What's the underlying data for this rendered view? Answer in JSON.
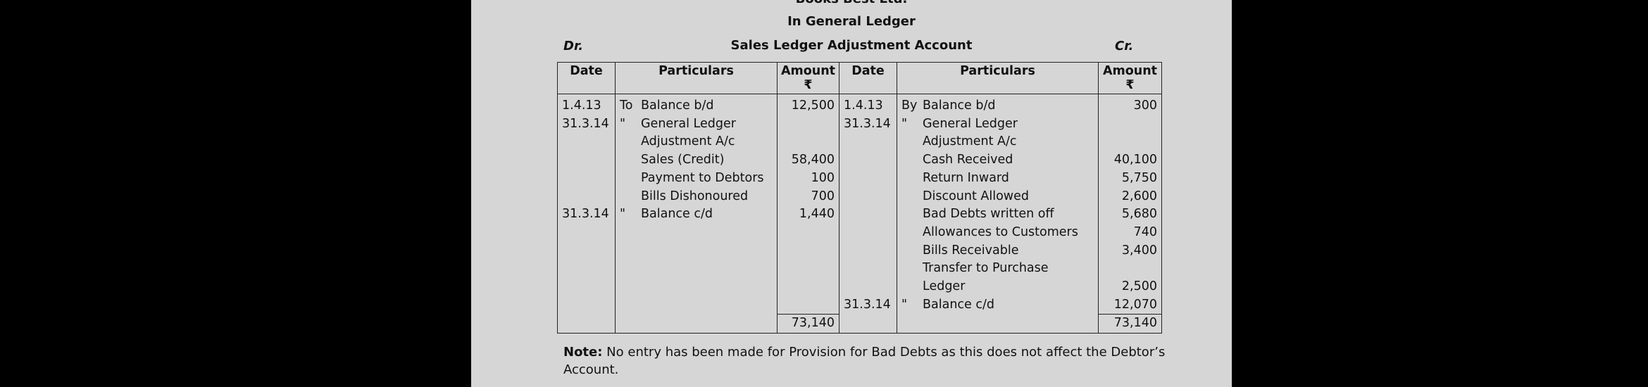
{
  "company": "Books Best Ltd.",
  "subtitle": "In General Ledger",
  "account_title": "Sales Ledger Adjustment Account",
  "dr_label": "Dr.",
  "cr_label": "Cr.",
  "headers": {
    "date": "Date",
    "particulars": "Particulars",
    "amount": "Amount",
    "currency": "₹"
  },
  "rows": [
    {
      "d_date": "1.4.13",
      "d_prefix": "To",
      "d_part": "Balance b/d",
      "d_amt": "12,500",
      "c_date": "1.4.13",
      "c_prefix": "By",
      "c_part": "Balance b/d",
      "c_amt": "300"
    },
    {
      "d_date": "31.3.14",
      "d_prefix": "\"",
      "d_part": "General Ledger",
      "d_amt": "",
      "c_date": "31.3.14",
      "c_prefix": "\"",
      "c_part": "General Ledger",
      "c_amt": ""
    },
    {
      "d_date": "",
      "d_prefix": "",
      "d_part": "Adjustment A/c",
      "d_amt": "",
      "c_date": "",
      "c_prefix": "",
      "c_part": "Adjustment A/c",
      "c_amt": ""
    },
    {
      "d_date": "",
      "d_prefix": "",
      "d_part": "Sales (Credit)",
      "d_amt": "58,400",
      "c_date": "",
      "c_prefix": "",
      "c_part": "Cash Received",
      "c_amt": "40,100"
    },
    {
      "d_date": "",
      "d_prefix": "",
      "d_part": "Payment to Debtors",
      "d_amt": "100",
      "c_date": "",
      "c_prefix": "",
      "c_part": "Return Inward",
      "c_amt": "5,750"
    },
    {
      "d_date": "",
      "d_prefix": "",
      "d_part": "Bills Dishonoured",
      "d_amt": "700",
      "c_date": "",
      "c_prefix": "",
      "c_part": "Discount Allowed",
      "c_amt": "2,600"
    },
    {
      "d_date": "31.3.14",
      "d_prefix": "\"",
      "d_part": "Balance c/d",
      "d_amt": "1,440",
      "c_date": "",
      "c_prefix": "",
      "c_part": "Bad Debts written off",
      "c_amt": "5,680"
    },
    {
      "d_date": "",
      "d_prefix": "",
      "d_part": "",
      "d_amt": "",
      "c_date": "",
      "c_prefix": "",
      "c_part": "Allowances to Customers",
      "c_amt": "740"
    },
    {
      "d_date": "",
      "d_prefix": "",
      "d_part": "",
      "d_amt": "",
      "c_date": "",
      "c_prefix": "",
      "c_part": "Bills Receivable",
      "c_amt": "3,400"
    },
    {
      "d_date": "",
      "d_prefix": "",
      "d_part": "",
      "d_amt": "",
      "c_date": "",
      "c_prefix": "",
      "c_part": "Transfer to Purchase",
      "c_amt": ""
    },
    {
      "d_date": "",
      "d_prefix": "",
      "d_part": "",
      "d_amt": "",
      "c_date": "",
      "c_prefix": "",
      "c_part": "Ledger",
      "c_amt": "2,500"
    },
    {
      "d_date": "",
      "d_prefix": "",
      "d_part": "",
      "d_amt": "",
      "c_date": "31.3.14",
      "c_prefix": "\"",
      "c_part": "Balance c/d",
      "c_amt": "12,070"
    }
  ],
  "totals": {
    "debit": "73,140",
    "credit": "73,140"
  },
  "note": {
    "label": "Note:",
    "text": " No entry has been made for Provision for Bad Debts as this does not affect the Debtor’s Account."
  }
}
